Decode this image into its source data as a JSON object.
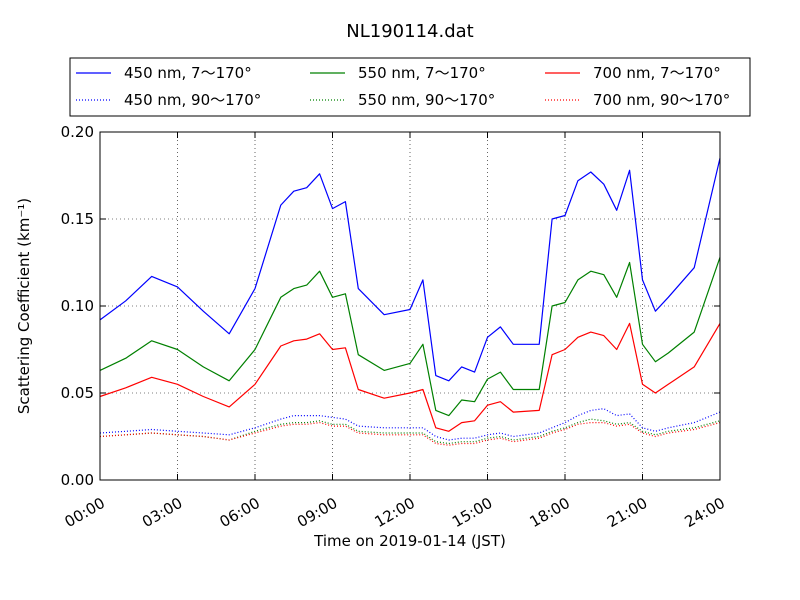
{
  "chart_data": {
    "type": "line",
    "title": "NL190114.dat",
    "xlabel": "Time on 2019-01-14 (JST)",
    "ylabel": "Scattering Coefficient (km⁻¹)",
    "x_ticks": [
      "00:00",
      "03:00",
      "06:00",
      "09:00",
      "12:00",
      "15:00",
      "18:00",
      "21:00",
      "24:00"
    ],
    "xlim": [
      "00:00",
      "24:00"
    ],
    "y_ticks": [
      "0.00",
      "0.05",
      "0.10",
      "0.15",
      "0.20"
    ],
    "ylim": [
      0,
      0.2
    ],
    "grid": true,
    "legend_position": "top (above plot, 3 columns)",
    "x": [
      "00:00",
      "01:00",
      "02:00",
      "03:00",
      "04:00",
      "05:00",
      "06:00",
      "07:00",
      "07:30",
      "08:00",
      "08:30",
      "09:00",
      "09:30",
      "10:00",
      "11:00",
      "12:00",
      "12:30",
      "13:00",
      "13:30",
      "14:00",
      "14:30",
      "15:00",
      "15:30",
      "16:00",
      "17:00",
      "17:30",
      "18:00",
      "18:30",
      "19:00",
      "19:30",
      "20:00",
      "20:30",
      "21:00",
      "21:30",
      "22:00",
      "23:00",
      "24:00"
    ],
    "series": [
      {
        "name": "450 nm, 7～170°",
        "color": "#0000ff",
        "style": "solid",
        "values": [
          0.092,
          0.103,
          0.117,
          0.111,
          0.097,
          0.084,
          0.11,
          0.158,
          0.166,
          0.168,
          0.176,
          0.156,
          0.16,
          0.11,
          0.095,
          0.098,
          0.115,
          0.06,
          0.057,
          0.065,
          0.062,
          0.082,
          0.088,
          0.078,
          0.078,
          0.15,
          0.152,
          0.172,
          0.177,
          0.17,
          0.155,
          0.178,
          0.115,
          0.097,
          0.105,
          0.122,
          0.185
        ]
      },
      {
        "name": "450 nm, 90～170°",
        "color": "#0000ff",
        "style": "dotted",
        "values": [
          0.027,
          0.028,
          0.029,
          0.028,
          0.027,
          0.026,
          0.03,
          0.035,
          0.037,
          0.037,
          0.037,
          0.036,
          0.035,
          0.031,
          0.03,
          0.03,
          0.03,
          0.025,
          0.023,
          0.024,
          0.024,
          0.026,
          0.027,
          0.025,
          0.027,
          0.03,
          0.033,
          0.037,
          0.04,
          0.041,
          0.037,
          0.038,
          0.03,
          0.028,
          0.03,
          0.033,
          0.039
        ]
      },
      {
        "name": "550 nm, 7～170°",
        "color": "#008000",
        "style": "solid",
        "values": [
          0.063,
          0.07,
          0.08,
          0.075,
          0.065,
          0.057,
          0.075,
          0.105,
          0.11,
          0.112,
          0.12,
          0.105,
          0.107,
          0.072,
          0.063,
          0.067,
          0.078,
          0.04,
          0.037,
          0.046,
          0.045,
          0.058,
          0.062,
          0.052,
          0.052,
          0.1,
          0.102,
          0.115,
          0.12,
          0.118,
          0.105,
          0.125,
          0.078,
          0.068,
          0.073,
          0.085,
          0.128
        ]
      },
      {
        "name": "550 nm, 90～170°",
        "color": "#008000",
        "style": "dotted",
        "values": [
          0.025,
          0.026,
          0.027,
          0.026,
          0.025,
          0.023,
          0.028,
          0.032,
          0.033,
          0.033,
          0.034,
          0.032,
          0.032,
          0.028,
          0.027,
          0.027,
          0.027,
          0.022,
          0.021,
          0.022,
          0.022,
          0.024,
          0.025,
          0.023,
          0.025,
          0.028,
          0.03,
          0.033,
          0.035,
          0.034,
          0.032,
          0.033,
          0.028,
          0.026,
          0.028,
          0.03,
          0.034
        ]
      },
      {
        "name": "700 nm, 7～170°",
        "color": "#ff0000",
        "style": "solid",
        "values": [
          0.048,
          0.053,
          0.059,
          0.055,
          0.048,
          0.042,
          0.055,
          0.077,
          0.08,
          0.081,
          0.084,
          0.075,
          0.076,
          0.052,
          0.047,
          0.05,
          0.052,
          0.03,
          0.028,
          0.033,
          0.034,
          0.043,
          0.045,
          0.039,
          0.04,
          0.072,
          0.075,
          0.082,
          0.085,
          0.083,
          0.075,
          0.09,
          0.055,
          0.05,
          0.055,
          0.065,
          0.09
        ]
      },
      {
        "name": "700 nm, 90～170°",
        "color": "#ff0000",
        "style": "dotted",
        "values": [
          0.025,
          0.026,
          0.027,
          0.026,
          0.025,
          0.023,
          0.027,
          0.031,
          0.032,
          0.032,
          0.033,
          0.031,
          0.031,
          0.027,
          0.026,
          0.026,
          0.026,
          0.021,
          0.02,
          0.021,
          0.021,
          0.023,
          0.024,
          0.022,
          0.024,
          0.027,
          0.029,
          0.032,
          0.033,
          0.033,
          0.031,
          0.032,
          0.027,
          0.025,
          0.027,
          0.029,
          0.033
        ]
      }
    ]
  }
}
